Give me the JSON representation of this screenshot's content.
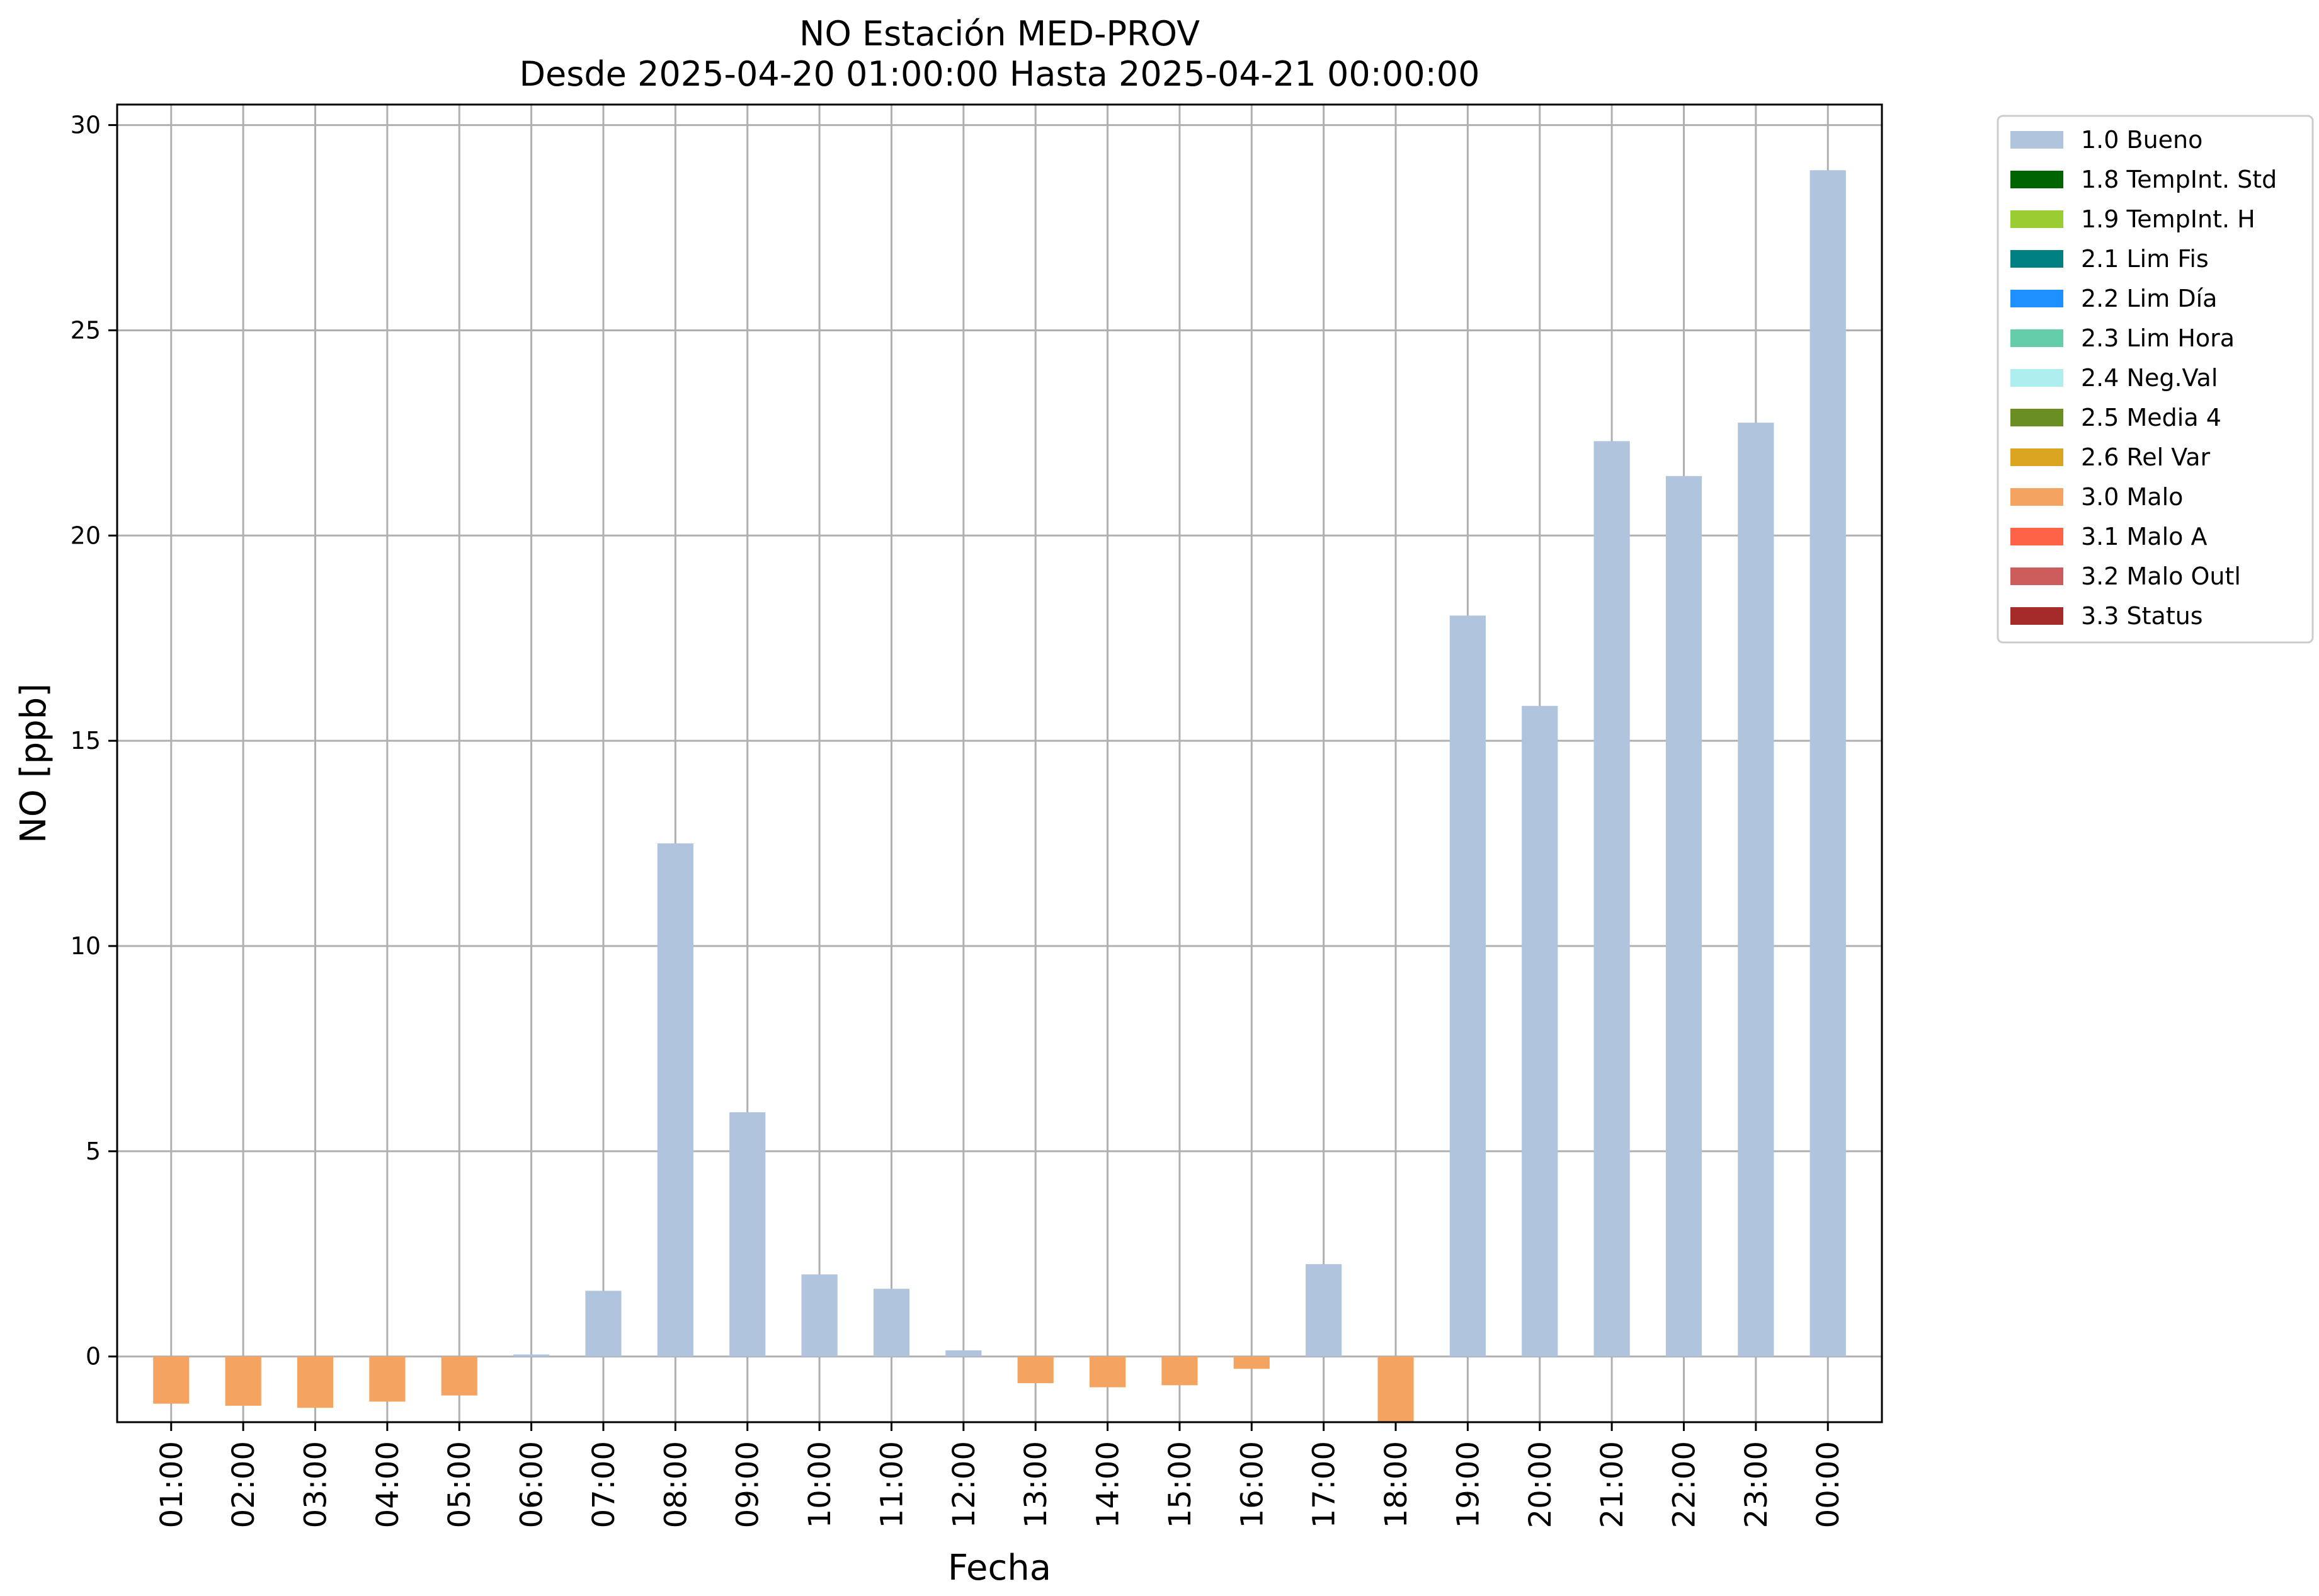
{
  "chart_data": {
    "type": "bar",
    "title": "NO Estación MED-PROV",
    "subtitle": "Desde 2025-04-20 01:00:00 Hasta 2025-04-21 00:00:00",
    "xlabel": "Fecha",
    "ylabel": "NO [ppb]",
    "ylim": [
      -1.6,
      30.5
    ],
    "yticks": [
      0,
      5,
      10,
      15,
      20,
      25,
      30
    ],
    "grid": true,
    "legend_position": "outside-top-right",
    "categories": [
      "01:00",
      "02:00",
      "03:00",
      "04:00",
      "05:00",
      "06:00",
      "07:00",
      "08:00",
      "09:00",
      "10:00",
      "11:00",
      "12:00",
      "13:00",
      "14:00",
      "15:00",
      "16:00",
      "17:00",
      "18:00",
      "19:00",
      "20:00",
      "21:00",
      "22:00",
      "23:00",
      "00:00"
    ],
    "values": [
      -1.15,
      -1.2,
      -1.25,
      -1.1,
      -0.95,
      0.05,
      1.6,
      12.5,
      5.95,
      2.0,
      1.65,
      0.15,
      -0.65,
      -0.75,
      -0.7,
      -0.3,
      2.25,
      -1.6,
      18.05,
      15.85,
      22.3,
      21.45,
      22.75,
      28.9
    ],
    "flags": [
      "3.0",
      "3.0",
      "3.0",
      "3.0",
      "3.0",
      "1.0",
      "1.0",
      "1.0",
      "1.0",
      "1.0",
      "1.0",
      "1.0",
      "3.0",
      "3.0",
      "3.0",
      "3.0",
      "1.0",
      "3.0",
      "1.0",
      "1.0",
      "1.0",
      "1.0",
      "1.0",
      "1.0"
    ],
    "legend": [
      {
        "code": "1.0",
        "label": "1.0 Bueno",
        "color": "#b0c4de"
      },
      {
        "code": "1.8",
        "label": "1.8 TempInt. Std",
        "color": "#006400"
      },
      {
        "code": "1.9",
        "label": "1.9 TempInt. H",
        "color": "#9acd32"
      },
      {
        "code": "2.1",
        "label": "2.1 Lim Fis",
        "color": "#008080"
      },
      {
        "code": "2.2",
        "label": "2.2 Lim Día",
        "color": "#1e90ff"
      },
      {
        "code": "2.3",
        "label": "2.3 Lim Hora",
        "color": "#66cdaa"
      },
      {
        "code": "2.4",
        "label": "2.4 Neg.Val",
        "color": "#afeeee"
      },
      {
        "code": "2.5",
        "label": "2.5 Media 4",
        "color": "#6b8e23"
      },
      {
        "code": "2.6",
        "label": "2.6 Rel Var",
        "color": "#daa520"
      },
      {
        "code": "3.0",
        "label": "3.0 Malo",
        "color": "#f4a460"
      },
      {
        "code": "3.1",
        "label": "3.1 Malo A",
        "color": "#ff6347"
      },
      {
        "code": "3.2",
        "label": "3.2 Malo Outl",
        "color": "#cd5c5c"
      },
      {
        "code": "3.3",
        "label": "3.3 Status",
        "color": "#a52a2a"
      }
    ]
  }
}
